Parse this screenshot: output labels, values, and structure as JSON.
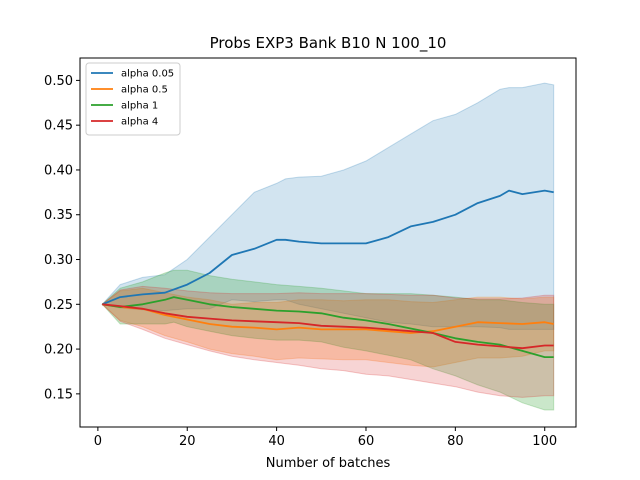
{
  "chart_data": {
    "type": "line",
    "title": "Probs EXP3 Bank B10 N 100_10",
    "xlabel": "Number of batches",
    "ylabel": "",
    "xlim": [
      -4,
      107
    ],
    "ylim": [
      0.113,
      0.525
    ],
    "xticks": [
      0,
      20,
      40,
      60,
      80,
      100
    ],
    "yticks": [
      0.15,
      0.2,
      0.25,
      0.3,
      0.35,
      0.4,
      0.45,
      0.5
    ],
    "xtick_labels": [
      "0",
      "20",
      "40",
      "60",
      "80",
      "100"
    ],
    "ytick_labels": [
      "0.15",
      "0.20",
      "0.25",
      "0.30",
      "0.35",
      "0.40",
      "0.45",
      "0.50"
    ],
    "grid": false,
    "legend_position": "top-left",
    "series": [
      {
        "name": "alpha 0.05",
        "color": "#1f77b4",
        "band_opacity": 0.2,
        "x": [
          1,
          5,
          10,
          15,
          20,
          25,
          30,
          35,
          40,
          42,
          45,
          50,
          55,
          60,
          65,
          70,
          75,
          80,
          85,
          90,
          92,
          95,
          100,
          102
        ],
        "mean": [
          0.25,
          0.258,
          0.261,
          0.263,
          0.272,
          0.285,
          0.305,
          0.312,
          0.322,
          0.322,
          0.32,
          0.318,
          0.318,
          0.318,
          0.325,
          0.337,
          0.342,
          0.35,
          0.363,
          0.371,
          0.377,
          0.373,
          0.377,
          0.375
        ],
        "upper": [
          0.25,
          0.272,
          0.28,
          0.283,
          0.3,
          0.325,
          0.35,
          0.375,
          0.385,
          0.39,
          0.392,
          0.393,
          0.4,
          0.41,
          0.425,
          0.44,
          0.455,
          0.462,
          0.475,
          0.49,
          0.492,
          0.492,
          0.497,
          0.495
        ],
        "lower": [
          0.25,
          0.246,
          0.244,
          0.243,
          0.245,
          0.245,
          0.255,
          0.253,
          0.255,
          0.255,
          0.25,
          0.245,
          0.24,
          0.235,
          0.23,
          0.228,
          0.225,
          0.225,
          0.225,
          0.224,
          0.222,
          0.222,
          0.222,
          0.222
        ]
      },
      {
        "name": "alpha 0.5",
        "color": "#ff7f0e",
        "band_opacity": 0.25,
        "x": [
          1,
          5,
          10,
          15,
          20,
          25,
          30,
          35,
          40,
          45,
          50,
          55,
          60,
          65,
          70,
          75,
          80,
          85,
          90,
          95,
          100,
          102
        ],
        "mean": [
          0.25,
          0.247,
          0.245,
          0.238,
          0.233,
          0.228,
          0.225,
          0.224,
          0.222,
          0.224,
          0.222,
          0.222,
          0.222,
          0.22,
          0.218,
          0.22,
          0.225,
          0.23,
          0.229,
          0.228,
          0.23,
          0.228
        ],
        "upper": [
          0.25,
          0.265,
          0.268,
          0.263,
          0.258,
          0.255,
          0.25,
          0.252,
          0.252,
          0.255,
          0.255,
          0.254,
          0.255,
          0.255,
          0.253,
          0.252,
          0.255,
          0.258,
          0.258,
          0.256,
          0.258,
          0.258
        ],
        "lower": [
          0.25,
          0.232,
          0.225,
          0.215,
          0.208,
          0.2,
          0.195,
          0.192,
          0.188,
          0.19,
          0.189,
          0.188,
          0.188,
          0.185,
          0.182,
          0.18,
          0.185,
          0.19,
          0.19,
          0.192,
          0.198,
          0.198
        ]
      },
      {
        "name": "alpha 1",
        "color": "#2ca02c",
        "band_opacity": 0.25,
        "x": [
          1,
          5,
          10,
          15,
          17,
          20,
          25,
          30,
          35,
          40,
          45,
          50,
          55,
          60,
          65,
          70,
          75,
          80,
          85,
          90,
          95,
          100,
          102
        ],
        "mean": [
          0.25,
          0.247,
          0.25,
          0.255,
          0.258,
          0.255,
          0.25,
          0.247,
          0.245,
          0.243,
          0.242,
          0.24,
          0.235,
          0.232,
          0.228,
          0.223,
          0.218,
          0.212,
          0.208,
          0.205,
          0.198,
          0.191,
          0.191
        ],
        "upper": [
          0.25,
          0.268,
          0.275,
          0.285,
          0.288,
          0.288,
          0.282,
          0.278,
          0.275,
          0.272,
          0.27,
          0.268,
          0.265,
          0.262,
          0.262,
          0.262,
          0.26,
          0.258,
          0.255,
          0.255,
          0.252,
          0.25,
          0.25
        ],
        "lower": [
          0.25,
          0.228,
          0.228,
          0.228,
          0.23,
          0.225,
          0.22,
          0.215,
          0.212,
          0.21,
          0.21,
          0.208,
          0.202,
          0.198,
          0.193,
          0.188,
          0.178,
          0.17,
          0.16,
          0.152,
          0.14,
          0.132,
          0.132
        ]
      },
      {
        "name": "alpha 4",
        "color": "#d62728",
        "band_opacity": 0.2,
        "x": [
          1,
          5,
          10,
          15,
          20,
          25,
          30,
          35,
          40,
          45,
          50,
          55,
          60,
          65,
          70,
          75,
          80,
          85,
          90,
          95,
          100,
          102
        ],
        "mean": [
          0.25,
          0.248,
          0.245,
          0.24,
          0.236,
          0.234,
          0.232,
          0.231,
          0.23,
          0.229,
          0.226,
          0.225,
          0.224,
          0.222,
          0.22,
          0.218,
          0.208,
          0.205,
          0.203,
          0.201,
          0.204,
          0.204
        ],
        "upper": [
          0.25,
          0.266,
          0.27,
          0.268,
          0.265,
          0.263,
          0.262,
          0.262,
          0.262,
          0.263,
          0.262,
          0.262,
          0.262,
          0.261,
          0.26,
          0.26,
          0.257,
          0.256,
          0.256,
          0.257,
          0.26,
          0.26
        ],
        "lower": [
          0.25,
          0.231,
          0.222,
          0.212,
          0.205,
          0.198,
          0.192,
          0.188,
          0.185,
          0.182,
          0.178,
          0.176,
          0.172,
          0.17,
          0.166,
          0.162,
          0.158,
          0.152,
          0.148,
          0.146,
          0.148,
          0.148
        ]
      }
    ]
  }
}
